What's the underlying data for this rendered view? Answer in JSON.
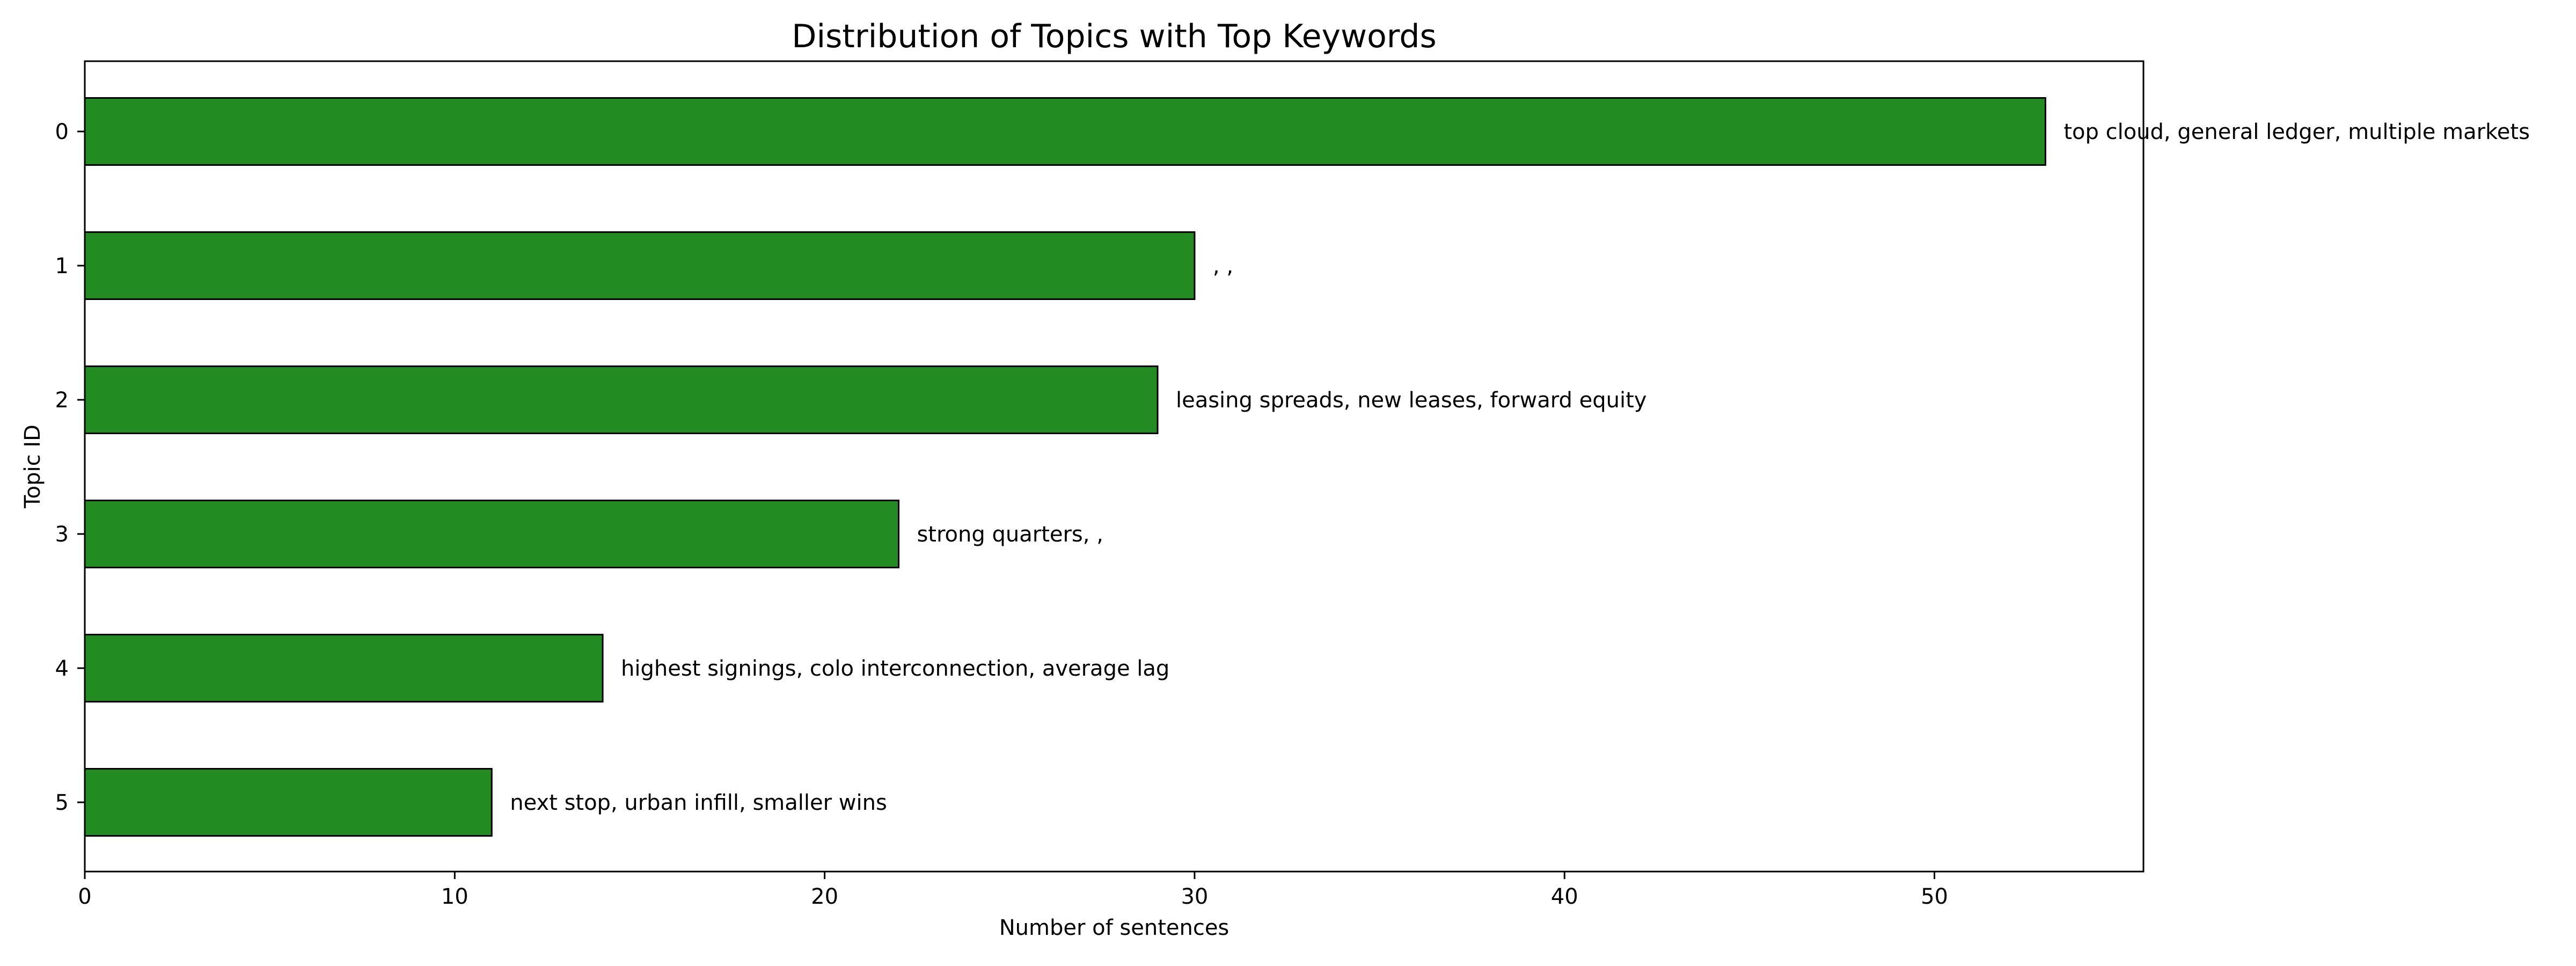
{
  "chart_data": {
    "type": "bar",
    "orientation": "horizontal",
    "title": "Distribution of Topics with Top Keywords",
    "xlabel": "Number of sentences",
    "ylabel": "Topic ID",
    "categories": [
      "0",
      "1",
      "2",
      "3",
      "4",
      "5"
    ],
    "values": [
      53,
      30,
      29,
      22,
      14,
      11
    ],
    "annotations": [
      "top cloud, general ledger, multiple markets",
      ", ,",
      "leasing spreads, new leases, forward equity",
      "strong quarters, ,",
      "highest signings, colo interconnection, average lag",
      "next stop, urban infill, smaller wins"
    ],
    "xticks": [
      0,
      10,
      20,
      30,
      40,
      50
    ],
    "xlim": [
      0,
      55.65
    ],
    "grid": false,
    "legend": "none",
    "bar_color": "#228B22",
    "bar_edge_color": "#000000"
  }
}
